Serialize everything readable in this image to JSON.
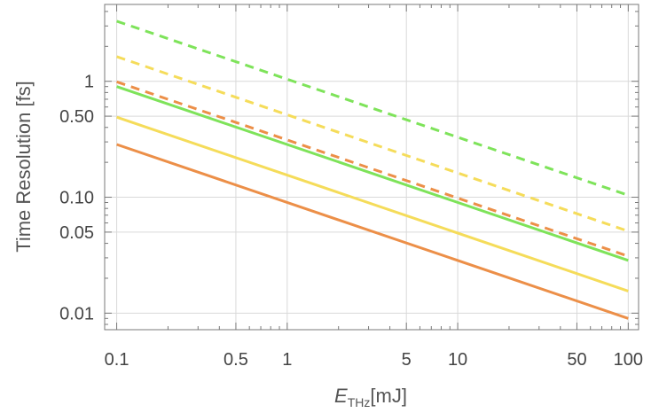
{
  "chart_data": {
    "type": "line",
    "title": "",
    "xlabel": {
      "main": "E",
      "sub": "THz",
      "unit": "[mJ]"
    },
    "ylabel": "Time Resolution [fs]",
    "xscale": "log",
    "yscale": "log",
    "xlim": [
      0.085,
      115
    ],
    "ylim": [
      0.0072,
      4.6
    ],
    "grid": true,
    "x_ticks": [
      {
        "value": 0.1,
        "label": "0.1"
      },
      {
        "value": 0.5,
        "label": "0.5"
      },
      {
        "value": 1,
        "label": "1"
      },
      {
        "value": 5,
        "label": "5"
      },
      {
        "value": 10,
        "label": "10"
      },
      {
        "value": 50,
        "label": "50"
      },
      {
        "value": 100,
        "label": "100"
      }
    ],
    "y_ticks": [
      {
        "value": 0.01,
        "label": "0.01"
      },
      {
        "value": 0.05,
        "label": "0.05"
      },
      {
        "value": 0.1,
        "label": "0.10"
      },
      {
        "value": 0.5,
        "label": "0.50"
      },
      {
        "value": 1,
        "label": "1"
      }
    ],
    "series": [
      {
        "color": "#7ee35a",
        "style": "dashed",
        "x": [
          0.1,
          100
        ],
        "y": [
          3.3,
          0.104
        ]
      },
      {
        "color": "#f5dc5a",
        "style": "dashed",
        "x": [
          0.1,
          100
        ],
        "y": [
          1.63,
          0.051
        ]
      },
      {
        "color": "#ec8f48",
        "style": "dashed",
        "x": [
          0.1,
          100
        ],
        "y": [
          0.99,
          0.031
        ]
      },
      {
        "color": "#7ee35a",
        "style": "solid",
        "x": [
          0.1,
          100
        ],
        "y": [
          0.9,
          0.0285
        ]
      },
      {
        "color": "#f5dc5a",
        "style": "solid",
        "x": [
          0.1,
          100
        ],
        "y": [
          0.49,
          0.0155
        ]
      },
      {
        "color": "#ec8f48",
        "style": "solid",
        "x": [
          0.1,
          100
        ],
        "y": [
          0.285,
          0.009
        ]
      }
    ]
  }
}
